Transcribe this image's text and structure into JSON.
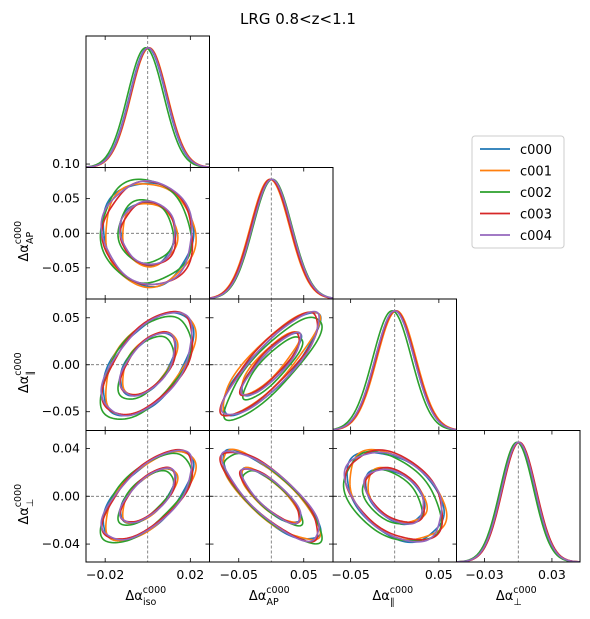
{
  "chart_data": {
    "type": "corner",
    "title": "LRG 0.8<z<1.1",
    "params": [
      "iso",
      "AP",
      "par",
      "perp"
    ],
    "axis_labels": [
      {
        "main": "Δα",
        "sub": "iso",
        "sup": "c000"
      },
      {
        "main": "Δα",
        "sub": "AP",
        "sup": "c000"
      },
      {
        "main": "Δα",
        "sub": "∥",
        "sup": "c000"
      },
      {
        "main": "Δα",
        "sub": "⊥",
        "sup": "c000"
      }
    ],
    "ranges": [
      [
        -0.029,
        0.029
      ],
      [
        -0.095,
        0.095
      ],
      [
        -0.07,
        0.07
      ],
      [
        -0.055,
        0.055
      ]
    ],
    "ticks": [
      {
        "values": [
          -0.02,
          0.02
        ],
        "labels": [
          "−0.02",
          "0.02"
        ]
      },
      {
        "values": [
          -0.05,
          0.05
        ],
        "labels": [
          "−0.05",
          "0.05"
        ]
      },
      {
        "values": [
          -0.05,
          0.05
        ],
        "labels": [
          "−0.05",
          "0.05"
        ]
      },
      {
        "values": [
          -0.03,
          0.03
        ],
        "labels": [
          "−0.03",
          "0.03"
        ]
      }
    ],
    "row_ticks": [
      null,
      {
        "values": [
          0.1,
          0.05,
          0.0,
          -0.05
        ],
        "labels": [
          "0.10",
          "0.05",
          "0.00",
          "−0.05"
        ]
      },
      {
        "values": [
          0.05,
          0.0,
          -0.05
        ],
        "labels": [
          "0.05",
          "0.00",
          "−0.05"
        ]
      },
      {
        "values": [
          0.04,
          0.0,
          -0.04
        ],
        "labels": [
          "0.04",
          "0.00",
          "−0.04"
        ]
      }
    ],
    "truth": [
      0,
      0,
      0,
      0
    ],
    "sigma": [
      0.0085,
      0.03,
      0.022,
      0.015
    ],
    "correlation": {
      "iso-AP": -0.05,
      "iso-par": 0.55,
      "AP-par": 0.85,
      "iso-perp": 0.65,
      "AP-perp": -0.8,
      "par-perp": -0.4
    },
    "contour_levels_sigma": [
      1,
      2
    ],
    "grid": false,
    "legend_position": "right",
    "series": [
      {
        "name": "c000",
        "color": "#1f77b4",
        "offset": [
          0.0,
          0.0,
          0.0,
          0.0
        ]
      },
      {
        "name": "c001",
        "color": "#ff7f0e",
        "offset": [
          0.0007,
          -0.002,
          0.002,
          0.0005
        ]
      },
      {
        "name": "c002",
        "color": "#2ca02c",
        "offset": [
          -0.001,
          0.002,
          -0.003,
          -0.0012
        ]
      },
      {
        "name": "c003",
        "color": "#d62728",
        "offset": [
          0.0005,
          -0.001,
          0.001,
          0.001
        ]
      },
      {
        "name": "c004",
        "color": "#9467bd",
        "offset": [
          0.0002,
          0.001,
          0.0,
          0.0002
        ]
      }
    ]
  }
}
